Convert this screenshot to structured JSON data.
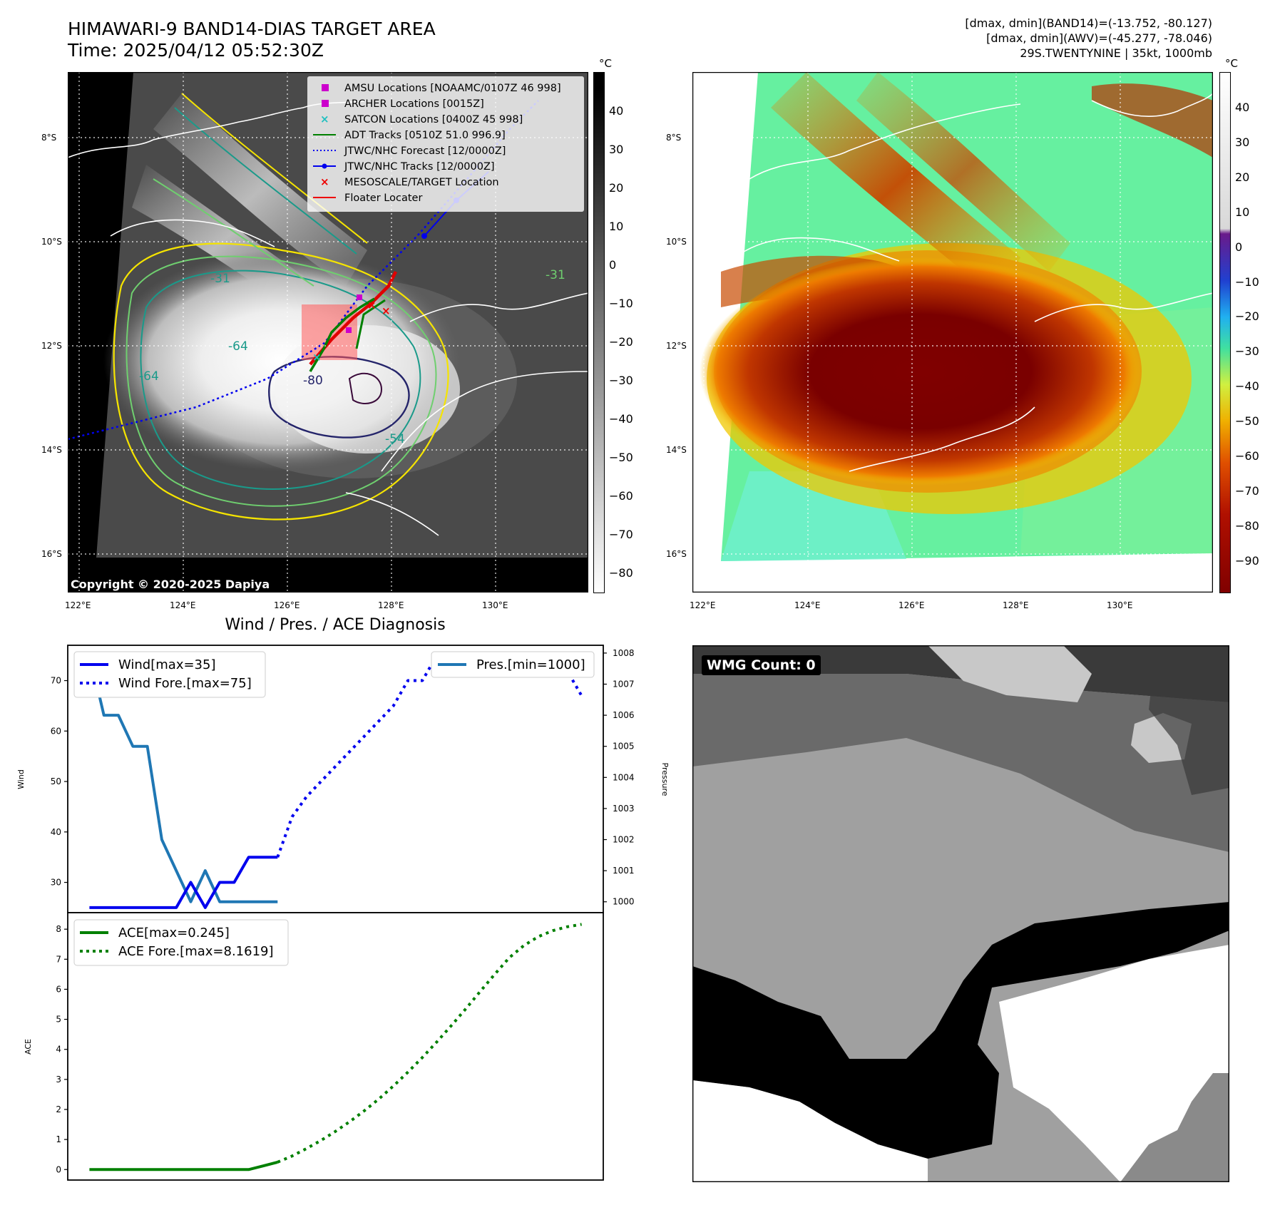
{
  "header": {
    "title_line1": "HIMAWARI-9 BAND14-DIAS TARGET AREA",
    "title_line2": "Time: 2025/04/12 05:52:30Z",
    "info_line1": "[dmax, dmin](BAND14)=(-13.752, -80.127)",
    "info_line2": "[dmax, dmin](AWV)=(-45.277, -78.046)",
    "info_line3": "29S.TWENTYNINE | 35kt, 1000mb"
  },
  "map": {
    "lat_labels": [
      "8°S",
      "10°S",
      "12°S",
      "14°S",
      "16°S"
    ],
    "lon_labels": [
      "122°E",
      "124°E",
      "126°E",
      "128°E",
      "130°E"
    ],
    "copyright": "Copyright © 2020-2025 Dapiya",
    "contour_labels": [
      "-31",
      "-64",
      "-64",
      "-54",
      "-31",
      "-80"
    ]
  },
  "legend": {
    "items": [
      {
        "label": "AMSU Locations [NOAAMC/0107Z 46 998]",
        "color": "#cc00cc",
        "marker": "square"
      },
      {
        "label": "ARCHER Locations [0015Z]",
        "color": "#cc00cc",
        "marker": "square"
      },
      {
        "label": "SATCON Locations [0400Z 45 998]",
        "color": "#20c0c0",
        "marker": "x"
      },
      {
        "label": "ADT Tracks [0510Z 51.0 996.9]",
        "color": "#008000",
        "marker": "line"
      },
      {
        "label": "JTWC/NHC Forecast [12/0000Z]",
        "color": "#0000ee",
        "marker": "dotted"
      },
      {
        "label": "JTWC/NHC Tracks [12/0000Z]",
        "color": "#0000ee",
        "marker": "line-dot"
      },
      {
        "label": "MESOSCALE/TARGET Location",
        "color": "#ee0000",
        "marker": "x"
      },
      {
        "label": "Floater Locater",
        "color": "#ee0000",
        "marker": "line"
      }
    ]
  },
  "colorbars": {
    "unit": "°C",
    "gray_ticks": [
      "40",
      "30",
      "20",
      "10",
      "0",
      "−10",
      "−20",
      "−30",
      "−40",
      "−50",
      "−60",
      "−70",
      "−80"
    ],
    "color_ticks": [
      "40",
      "30",
      "20",
      "10",
      "0",
      "−10",
      "−20",
      "−30",
      "−40",
      "−50",
      "−60",
      "−70",
      "−80",
      "−90"
    ]
  },
  "wmg": {
    "label": "WMG Count: 0"
  },
  "colors": {
    "wind": "#0000ee",
    "pressure": "#1f77b4",
    "ace": "#008000"
  },
  "chart_data": [
    {
      "type": "line",
      "title": "Wind / Pres. / ACE Diagnosis",
      "ylabel": "Wind",
      "y2label": "Pressure",
      "ylim": [
        24,
        77
      ],
      "y2lim": [
        999.65,
        1008.25
      ],
      "yticks": [
        "30",
        "40",
        "50",
        "60",
        "70"
      ],
      "y2ticks": [
        "1000",
        "1001",
        "1002",
        "1003",
        "1004",
        "1005",
        "1006",
        "1007",
        "1008"
      ],
      "legend_left": [
        "Wind[max=35]",
        "Wind Fore.[max=75]"
      ],
      "legend_right": [
        "Pres.[min=1000]"
      ],
      "series": [
        {
          "name": "Wind[max=35]",
          "style": "solid",
          "color": "#0000ee",
          "x": [
            0,
            1,
            2,
            3,
            4,
            5,
            6,
            7,
            8,
            9,
            10,
            11,
            12,
            13
          ],
          "values": [
            25,
            25,
            25,
            25,
            25,
            25,
            25,
            30,
            25,
            30,
            30,
            35,
            35,
            35
          ]
        },
        {
          "name": "Wind Fore.[max=75]",
          "style": "dotted",
          "color": "#0000ee",
          "x": [
            13,
            14,
            15,
            16,
            17,
            18,
            19,
            20,
            21,
            22,
            23,
            24,
            25,
            26,
            27,
            28,
            29,
            30,
            31,
            32,
            33,
            34
          ],
          "values": [
            35,
            43,
            47,
            50,
            53,
            56,
            59,
            62,
            65,
            70,
            70,
            75,
            75,
            75,
            75,
            75,
            75,
            75,
            75,
            72,
            72,
            67
          ]
        },
        {
          "name": "Pres.[min=1000]",
          "style": "solid",
          "color": "#1f77b4",
          "axis": "right",
          "x": [
            0,
            1,
            2,
            3,
            4,
            5,
            6,
            7,
            8,
            9,
            10,
            11,
            12,
            13
          ],
          "values": [
            1008,
            1006,
            1006,
            1005,
            1005,
            1002,
            1001,
            1000,
            1001,
            1000,
            1000,
            1000,
            1000,
            1000
          ]
        }
      ]
    },
    {
      "type": "line",
      "ylabel": "ACE",
      "ylim": [
        -0.35,
        8.55
      ],
      "yticks": [
        "0",
        "1",
        "2",
        "3",
        "4",
        "5",
        "6",
        "7",
        "8"
      ],
      "legend_left": [
        "ACE[max=0.245]",
        "ACE Fore.[max=8.1619]"
      ],
      "series": [
        {
          "name": "ACE[max=0.245]",
          "style": "solid",
          "color": "#008000",
          "x": [
            0,
            1,
            2,
            3,
            4,
            5,
            6,
            7,
            8,
            9,
            10,
            11,
            12,
            13
          ],
          "values": [
            0,
            0,
            0,
            0,
            0,
            0,
            0,
            0,
            0,
            0,
            0,
            0,
            0.12,
            0.245
          ]
        },
        {
          "name": "ACE Fore.[max=8.1619]",
          "style": "dotted",
          "color": "#008000",
          "x": [
            13,
            14,
            15,
            16,
            17,
            18,
            19,
            20,
            21,
            22,
            23,
            24,
            25,
            26,
            27,
            28,
            29,
            30,
            31,
            32,
            33,
            34
          ],
          "values": [
            0.245,
            0.45,
            0.7,
            0.97,
            1.27,
            1.6,
            1.96,
            2.35,
            2.78,
            3.24,
            3.73,
            4.25,
            4.79,
            5.35,
            5.93,
            6.5,
            7.05,
            7.45,
            7.75,
            7.95,
            8.08,
            8.1619
          ]
        }
      ]
    }
  ]
}
